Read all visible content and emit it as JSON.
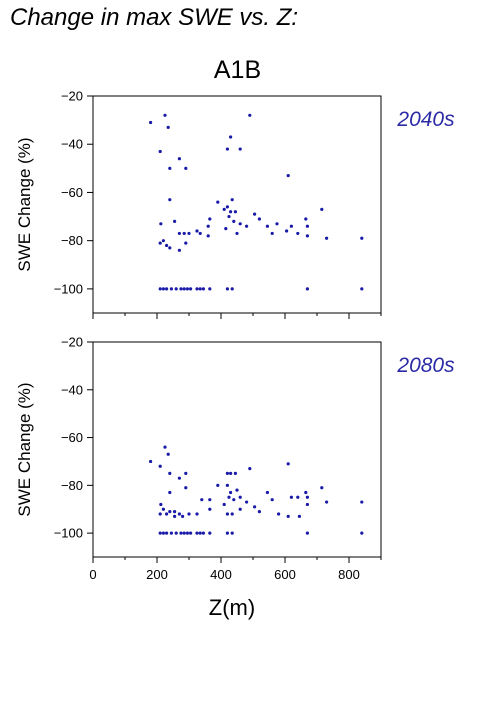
{
  "title": "Change in max SWE vs. Z:",
  "scenario": "A1B",
  "colors": {
    "points": "#1a1aa8",
    "period_label": "#2b2ba6",
    "axis": "#000000"
  },
  "chart_data": [
    {
      "type": "scatter",
      "period": "2040s",
      "ylabel": "SWE Change (%)",
      "xlabel": "",
      "xlim": [
        0,
        900
      ],
      "ylim": [
        -110,
        -20
      ],
      "yticks": [
        -20,
        -40,
        -60,
        -80,
        -100
      ],
      "xticks": [],
      "points": [
        [
          180,
          -31
        ],
        [
          210,
          -43
        ],
        [
          225,
          -28
        ],
        [
          235,
          -33
        ],
        [
          270,
          -46
        ],
        [
          290,
          -50
        ],
        [
          240,
          -50
        ],
        [
          240,
          -63
        ],
        [
          212,
          -73
        ],
        [
          255,
          -72
        ],
        [
          210,
          -81
        ],
        [
          220,
          -80
        ],
        [
          230,
          -82
        ],
        [
          240,
          -83
        ],
        [
          270,
          -84
        ],
        [
          270,
          -77
        ],
        [
          285,
          -77
        ],
        [
          300,
          -77
        ],
        [
          290,
          -81
        ],
        [
          325,
          -76
        ],
        [
          335,
          -77
        ],
        [
          360,
          -74
        ],
        [
          365,
          -71
        ],
        [
          360,
          -78
        ],
        [
          390,
          -64
        ],
        [
          410,
          -67
        ],
        [
          415,
          -75
        ],
        [
          420,
          -42
        ],
        [
          430,
          -37
        ],
        [
          420,
          -66
        ],
        [
          430,
          -68
        ],
        [
          425,
          -70
        ],
        [
          440,
          -72
        ],
        [
          435,
          -63
        ],
        [
          445,
          -68
        ],
        [
          450,
          -77
        ],
        [
          460,
          -42
        ],
        [
          460,
          -73
        ],
        [
          480,
          -74
        ],
        [
          490,
          -28
        ],
        [
          505,
          -69
        ],
        [
          520,
          -71
        ],
        [
          545,
          -74
        ],
        [
          560,
          -77
        ],
        [
          575,
          -73
        ],
        [
          610,
          -53
        ],
        [
          605,
          -76
        ],
        [
          620,
          -74
        ],
        [
          640,
          -77
        ],
        [
          665,
          -71
        ],
        [
          670,
          -74
        ],
        [
          670,
          -78
        ],
        [
          715,
          -67
        ],
        [
          730,
          -79
        ],
        [
          840,
          -79
        ],
        [
          210,
          -100
        ],
        [
          220,
          -100
        ],
        [
          230,
          -100
        ],
        [
          245,
          -100
        ],
        [
          260,
          -100
        ],
        [
          275,
          -100
        ],
        [
          285,
          -100
        ],
        [
          295,
          -100
        ],
        [
          305,
          -100
        ],
        [
          325,
          -100
        ],
        [
          335,
          -100
        ],
        [
          345,
          -100
        ],
        [
          365,
          -100
        ],
        [
          420,
          -100
        ],
        [
          435,
          -100
        ],
        [
          670,
          -100
        ],
        [
          840,
          -100
        ]
      ]
    },
    {
      "type": "scatter",
      "period": "2080s",
      "ylabel": "SWE Change (%)",
      "xlabel": "Z(m)",
      "xlim": [
        0,
        900
      ],
      "ylim": [
        -110,
        -20
      ],
      "yticks": [
        -20,
        -40,
        -60,
        -80,
        -100
      ],
      "xticks": [
        0,
        200,
        400,
        600,
        800
      ],
      "points": [
        [
          180,
          -70
        ],
        [
          210,
          -72
        ],
        [
          225,
          -64
        ],
        [
          235,
          -67
        ],
        [
          240,
          -75
        ],
        [
          240,
          -83
        ],
        [
          270,
          -77
        ],
        [
          290,
          -75
        ],
        [
          212,
          -88
        ],
        [
          210,
          -92
        ],
        [
          220,
          -90
        ],
        [
          230,
          -92
        ],
        [
          240,
          -91
        ],
        [
          255,
          -93
        ],
        [
          255,
          -91
        ],
        [
          270,
          -92
        ],
        [
          280,
          -93
        ],
        [
          300,
          -92
        ],
        [
          290,
          -81
        ],
        [
          325,
          -92
        ],
        [
          340,
          -86
        ],
        [
          365,
          -86
        ],
        [
          365,
          -90
        ],
        [
          390,
          -80
        ],
        [
          410,
          -88
        ],
        [
          420,
          -92
        ],
        [
          420,
          -75
        ],
        [
          430,
          -75
        ],
        [
          420,
          -80
        ],
        [
          430,
          -83
        ],
        [
          425,
          -85
        ],
        [
          440,
          -86
        ],
        [
          435,
          -92
        ],
        [
          445,
          -75
        ],
        [
          450,
          -82
        ],
        [
          460,
          -85
        ],
        [
          460,
          -90
        ],
        [
          490,
          -73
        ],
        [
          480,
          -87
        ],
        [
          505,
          -89
        ],
        [
          520,
          -91
        ],
        [
          545,
          -83
        ],
        [
          560,
          -86
        ],
        [
          580,
          -92
        ],
        [
          610,
          -71
        ],
        [
          610,
          -93
        ],
        [
          620,
          -85
        ],
        [
          640,
          -85
        ],
        [
          645,
          -93
        ],
        [
          665,
          -83
        ],
        [
          670,
          -85
        ],
        [
          670,
          -88
        ],
        [
          715,
          -81
        ],
        [
          730,
          -87
        ],
        [
          840,
          -87
        ],
        [
          210,
          -100
        ],
        [
          220,
          -100
        ],
        [
          230,
          -100
        ],
        [
          245,
          -100
        ],
        [
          260,
          -100
        ],
        [
          275,
          -100
        ],
        [
          285,
          -100
        ],
        [
          295,
          -100
        ],
        [
          305,
          -100
        ],
        [
          325,
          -100
        ],
        [
          335,
          -100
        ],
        [
          345,
          -100
        ],
        [
          365,
          -100
        ],
        [
          420,
          -100
        ],
        [
          435,
          -100
        ],
        [
          670,
          -100
        ],
        [
          840,
          -100
        ]
      ]
    }
  ]
}
